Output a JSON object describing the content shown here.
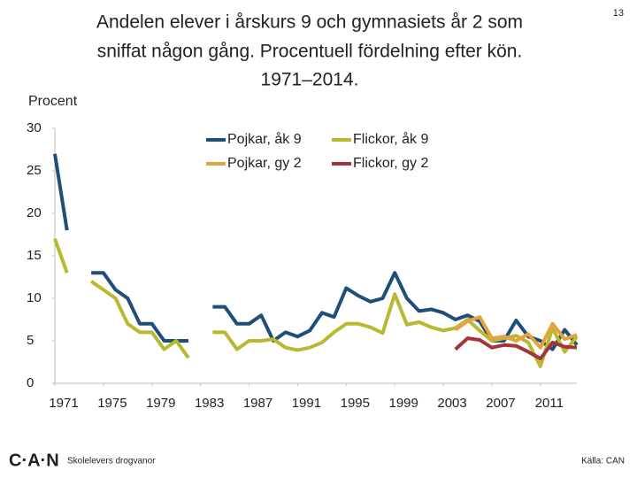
{
  "page_number": "13",
  "footer_logo": "C·A·N",
  "footer_text": "Skolelevers drogvanor",
  "source": "Källa: CAN",
  "chart_data": {
    "type": "line",
    "title": [
      "Andelen elever i årskurs 9 och gymnasiets år 2 som",
      "sniffat någon gång. Procentuell fördelning efter kön.",
      "1971–2014."
    ],
    "y_label": "Procent",
    "x": [
      1971,
      1972,
      1973,
      1974,
      1975,
      1976,
      1977,
      1978,
      1979,
      1980,
      1981,
      1982,
      1983,
      1984,
      1985,
      1986,
      1987,
      1988,
      1989,
      1990,
      1991,
      1992,
      1993,
      1994,
      1995,
      1996,
      1997,
      1998,
      1999,
      2000,
      2001,
      2002,
      2003,
      2004,
      2005,
      2006,
      2007,
      2008,
      2009,
      2010,
      2011,
      2012,
      2013,
      2014
    ],
    "xlim": [
      1971,
      2014
    ],
    "xticks": [
      1971,
      1975,
      1979,
      1983,
      1987,
      1991,
      1995,
      1999,
      2003,
      2007,
      2011
    ],
    "ylim": [
      0,
      30
    ],
    "yticks": [
      0,
      5,
      10,
      15,
      20,
      25,
      30
    ],
    "grid": false,
    "legend": "top",
    "series": [
      {
        "name": "Pojkar, åk 9",
        "color": "#1f4e79",
        "values": [
          27,
          18,
          null,
          13,
          13,
          11,
          10,
          7,
          7,
          5,
          5,
          5,
          null,
          9,
          9,
          7,
          7,
          8,
          5,
          6,
          5.5,
          6.2,
          8.3,
          7.8,
          11.2,
          10.3,
          9.6,
          10,
          13,
          10,
          8.5,
          8.7,
          8.3,
          7.5,
          8,
          7.3,
          5,
          5,
          7.4,
          5.5,
          5,
          4,
          6.3,
          4.5
        ]
      },
      {
        "name": "Flickor, åk 9",
        "color": "#b8b832",
        "values": [
          17,
          13,
          null,
          12,
          11,
          10,
          7,
          6,
          6,
          4,
          5,
          3,
          null,
          6,
          6,
          4,
          5,
          5,
          5.2,
          4.2,
          3.9,
          4.2,
          4.8,
          6,
          7,
          7,
          6.6,
          5.9,
          10.5,
          6.9,
          7.2,
          6.6,
          6.2,
          6.5,
          7.5,
          6.2,
          5,
          5.3,
          5.6,
          4.8,
          2,
          6.5,
          3.7,
          5.5
        ]
      },
      {
        "name": "Pojkar, gy 2",
        "color": "#e6a23c",
        "values": [
          null,
          null,
          null,
          null,
          null,
          null,
          null,
          null,
          null,
          null,
          null,
          null,
          null,
          null,
          null,
          null,
          null,
          null,
          null,
          null,
          null,
          null,
          null,
          null,
          null,
          null,
          null,
          null,
          null,
          null,
          null,
          null,
          null,
          6.3,
          7.3,
          7.8,
          5.3,
          5.5,
          5,
          5.8,
          4.2,
          7,
          5.2,
          5.7
        ]
      },
      {
        "name": "Flickor, gy 2",
        "color": "#a3343c",
        "values": [
          null,
          null,
          null,
          null,
          null,
          null,
          null,
          null,
          null,
          null,
          null,
          null,
          null,
          null,
          null,
          null,
          null,
          null,
          null,
          null,
          null,
          null,
          null,
          null,
          null,
          null,
          null,
          null,
          null,
          null,
          null,
          null,
          null,
          4,
          5.3,
          5.1,
          4.2,
          4.5,
          4.4,
          3.7,
          2.9,
          4.8,
          4.3,
          4.2
        ]
      }
    ]
  }
}
